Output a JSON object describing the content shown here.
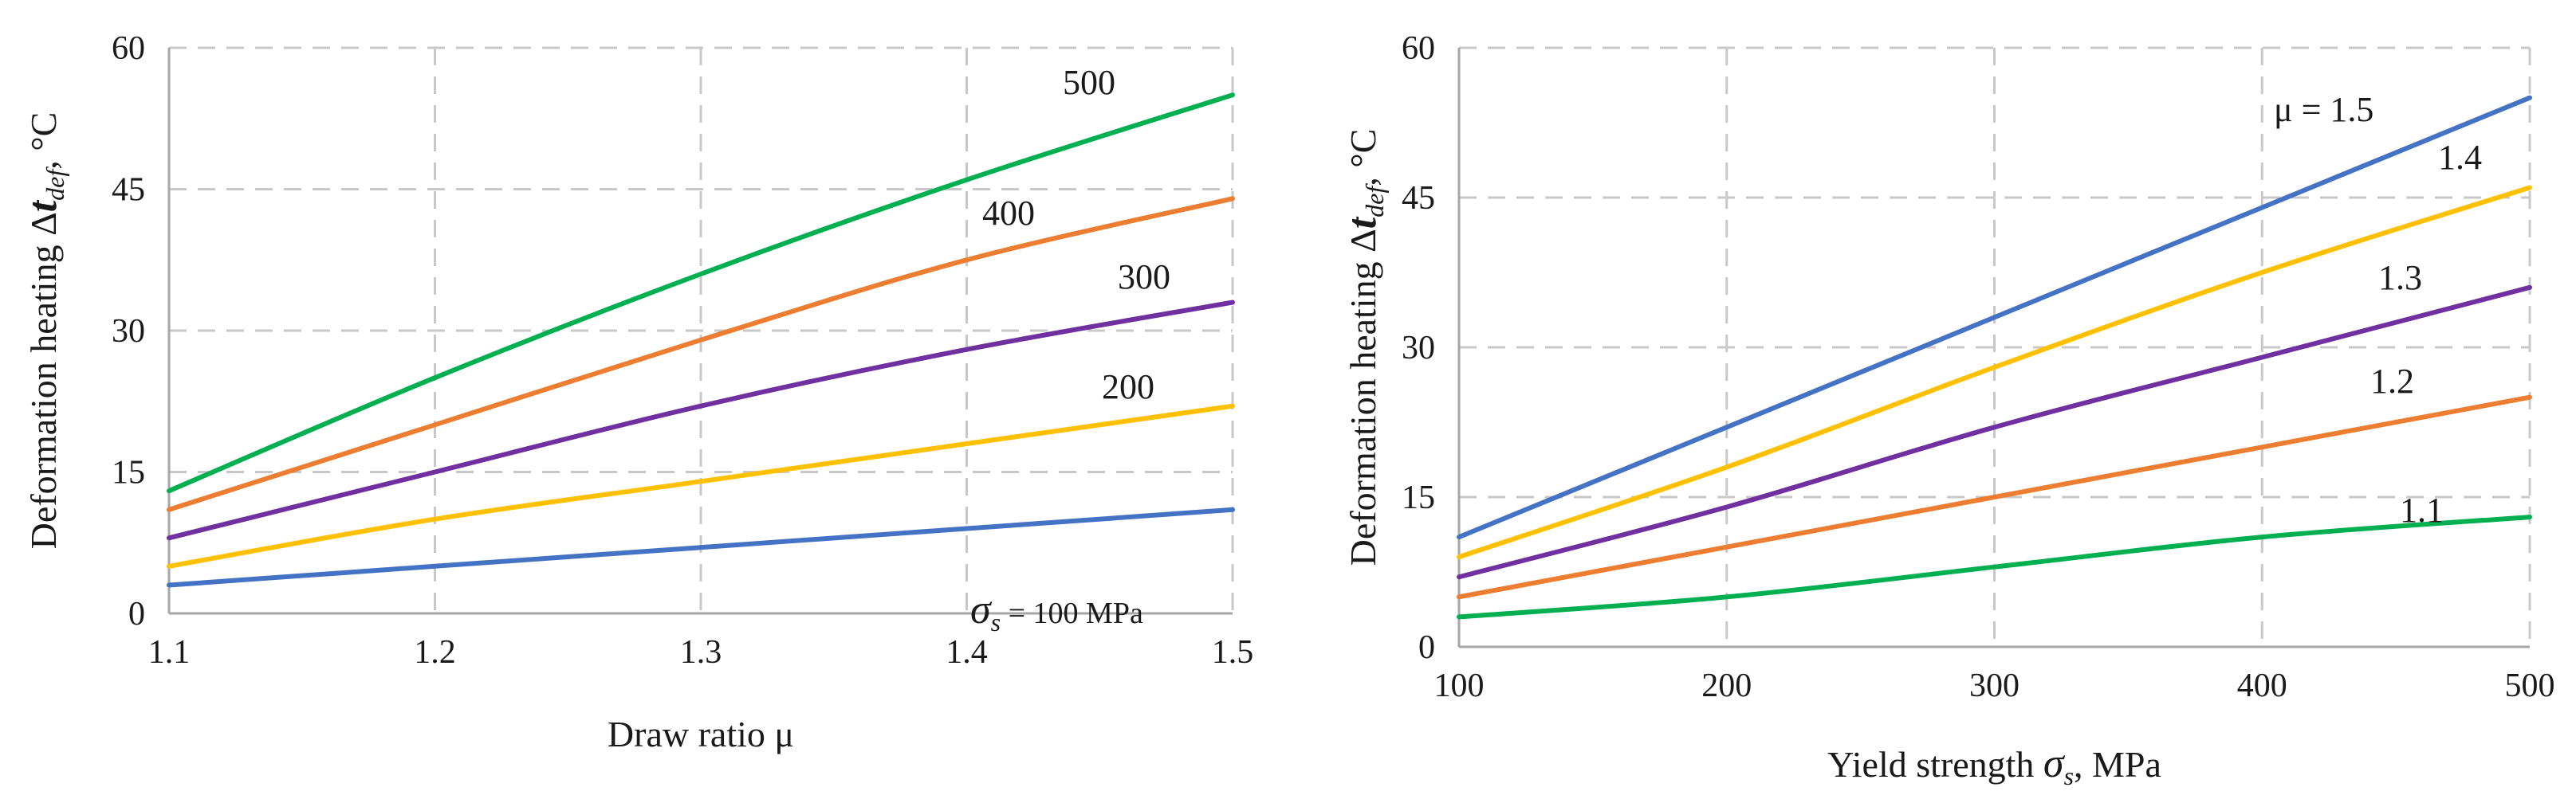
{
  "chart_data": [
    {
      "type": "line",
      "xlabel": "Draw ratio μ",
      "ylabel": "Deformation heating Δt",
      "ylabel_sub": "def",
      "ylabel_unit": ", °C",
      "xlim": [
        1.1,
        1.5
      ],
      "ylim": [
        0,
        60
      ],
      "xticks": [
        1.1,
        1.2,
        1.3,
        1.4,
        1.5
      ],
      "xtick_labels": [
        "1.1",
        "1.2",
        "1.3",
        "1.4",
        "1.5"
      ],
      "yticks": [
        0,
        15,
        30,
        45,
        60
      ],
      "ytick_labels": [
        "0",
        "15",
        "30",
        "45",
        "60"
      ],
      "grid": true,
      "series": [
        {
          "name": "σs = 100 MPa",
          "label_prefix": "σ",
          "label_sub": "s",
          "label_text": " = 100 MPa",
          "color": "#4472C4",
          "x": [
            1.1,
            1.2,
            1.3,
            1.4,
            1.5
          ],
          "values": [
            3,
            5,
            7,
            9,
            11
          ]
        },
        {
          "name": "200",
          "label_text": "200",
          "color": "#FFC000",
          "x": [
            1.1,
            1.2,
            1.3,
            1.4,
            1.5
          ],
          "values": [
            5,
            10,
            14,
            18,
            22
          ]
        },
        {
          "name": "300",
          "label_text": "300",
          "color": "#7030A0",
          "x": [
            1.1,
            1.2,
            1.3,
            1.4,
            1.5
          ],
          "values": [
            8,
            15,
            22,
            28,
            33
          ]
        },
        {
          "name": "400",
          "label_text": "400",
          "color": "#ED7D31",
          "x": [
            1.1,
            1.2,
            1.3,
            1.4,
            1.5
          ],
          "values": [
            11,
            20,
            29,
            37.5,
            44
          ]
        },
        {
          "name": "500",
          "label_text": "500",
          "color": "#00B050",
          "x": [
            1.1,
            1.2,
            1.3,
            1.4,
            1.5
          ],
          "values": [
            13,
            25,
            36,
            46,
            55
          ]
        }
      ]
    },
    {
      "type": "line",
      "xlabel": "Yield strength σ",
      "xlabel_sub": "s",
      "xlabel_unit": ", MPa",
      "ylabel": "Deformation heating Δt",
      "ylabel_sub": "def",
      "ylabel_unit": ", °C",
      "xlim": [
        100,
        500
      ],
      "ylim": [
        0,
        60
      ],
      "xticks": [
        100,
        200,
        300,
        400,
        500
      ],
      "xtick_labels": [
        "100",
        "200",
        "300",
        "400",
        "500"
      ],
      "yticks": [
        0,
        15,
        30,
        45,
        60
      ],
      "ytick_labels": [
        "0",
        "15",
        "30",
        "45",
        "60"
      ],
      "grid": true,
      "series": [
        {
          "name": "1.1",
          "label_text": "1.1",
          "color": "#00B050",
          "x": [
            100,
            200,
            300,
            400,
            500
          ],
          "values": [
            3,
            5,
            8,
            11,
            13
          ]
        },
        {
          "name": "1.2",
          "label_text": "1.2",
          "color": "#ED7D31",
          "x": [
            100,
            200,
            300,
            400,
            500
          ],
          "values": [
            5,
            10,
            15,
            20,
            25
          ]
        },
        {
          "name": "1.3",
          "label_text": "1.3",
          "color": "#7030A0",
          "x": [
            100,
            200,
            300,
            400,
            500
          ],
          "values": [
            7,
            14,
            22,
            29,
            36
          ]
        },
        {
          "name": "1.4",
          "label_text": "1.4",
          "color": "#FFC000",
          "x": [
            100,
            200,
            300,
            400,
            500
          ],
          "values": [
            9,
            18,
            28,
            37.5,
            46
          ]
        },
        {
          "name": "μ = 1.5",
          "label_text": "μ = 1.5",
          "color": "#4472C4",
          "x": [
            100,
            200,
            300,
            400,
            500
          ],
          "values": [
            11,
            22,
            33,
            44,
            55
          ]
        }
      ]
    }
  ]
}
